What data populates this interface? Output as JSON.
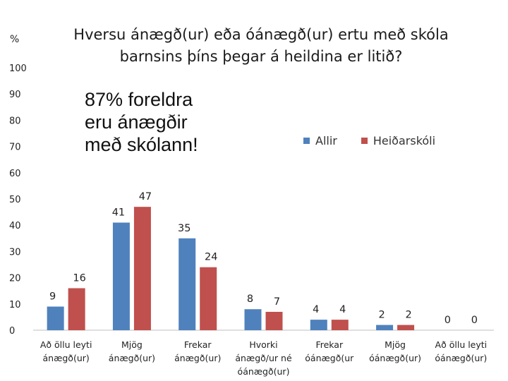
{
  "chart_data": {
    "type": "bar",
    "title_lines": [
      "Hversu ánægð(ur) eða óánægð(ur) ertu með skóla",
      "barnsins þíns þegar á heildina er litið?"
    ],
    "ylabel": "%",
    "ylim": [
      0,
      100
    ],
    "yticks": [
      0,
      10,
      20,
      30,
      40,
      50,
      60,
      70,
      80,
      90,
      100
    ],
    "categories": [
      [
        "Að öllu leyti",
        "ánægð(ur)"
      ],
      [
        "Mjög",
        "ánægð(ur)"
      ],
      [
        "Frekar",
        "ánægð(ur)"
      ],
      [
        "Hvorki",
        "ánægð/ur né",
        "óánægð(ur)"
      ],
      [
        "Frekar",
        "óánægð(ur"
      ],
      [
        "Mjög",
        "óánægð(ur)"
      ],
      [
        "Að öllu leyti",
        "óánægð(ur)"
      ]
    ],
    "series": [
      {
        "name": "Allir",
        "color": "#4f81bd",
        "values": [
          9,
          41,
          35,
          8,
          4,
          2,
          0
        ]
      },
      {
        "name": "Heiðarskóli",
        "color": "#c0504d",
        "values": [
          16,
          47,
          24,
          7,
          4,
          2,
          0
        ]
      }
    ],
    "annotation_lines": [
      "87% foreldra",
      "eru ánægðir",
      "með skólann!"
    ],
    "legend_position": "top-right",
    "grid": false
  }
}
